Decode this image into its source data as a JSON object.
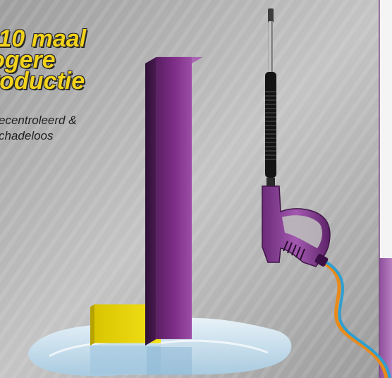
{
  "headline": {
    "line1": "-10 maal",
    "line2": "ogere",
    "line3": "roductie"
  },
  "subline": {
    "line1": "ecentroleerd &",
    "line2": "chadeloos"
  },
  "colors": {
    "background": "#b6b6b6",
    "headline": "#f2d21b",
    "tall_bar": "#7d2d86",
    "small_box": "#e9d400",
    "water": "#cfe5f3",
    "right_panel": "#a86bb2"
  },
  "chart_data": {
    "type": "bar",
    "categories": [
      "",
      ""
    ],
    "values": [
      1,
      10
    ],
    "title": "",
    "xlabel": "",
    "ylabel": ""
  }
}
